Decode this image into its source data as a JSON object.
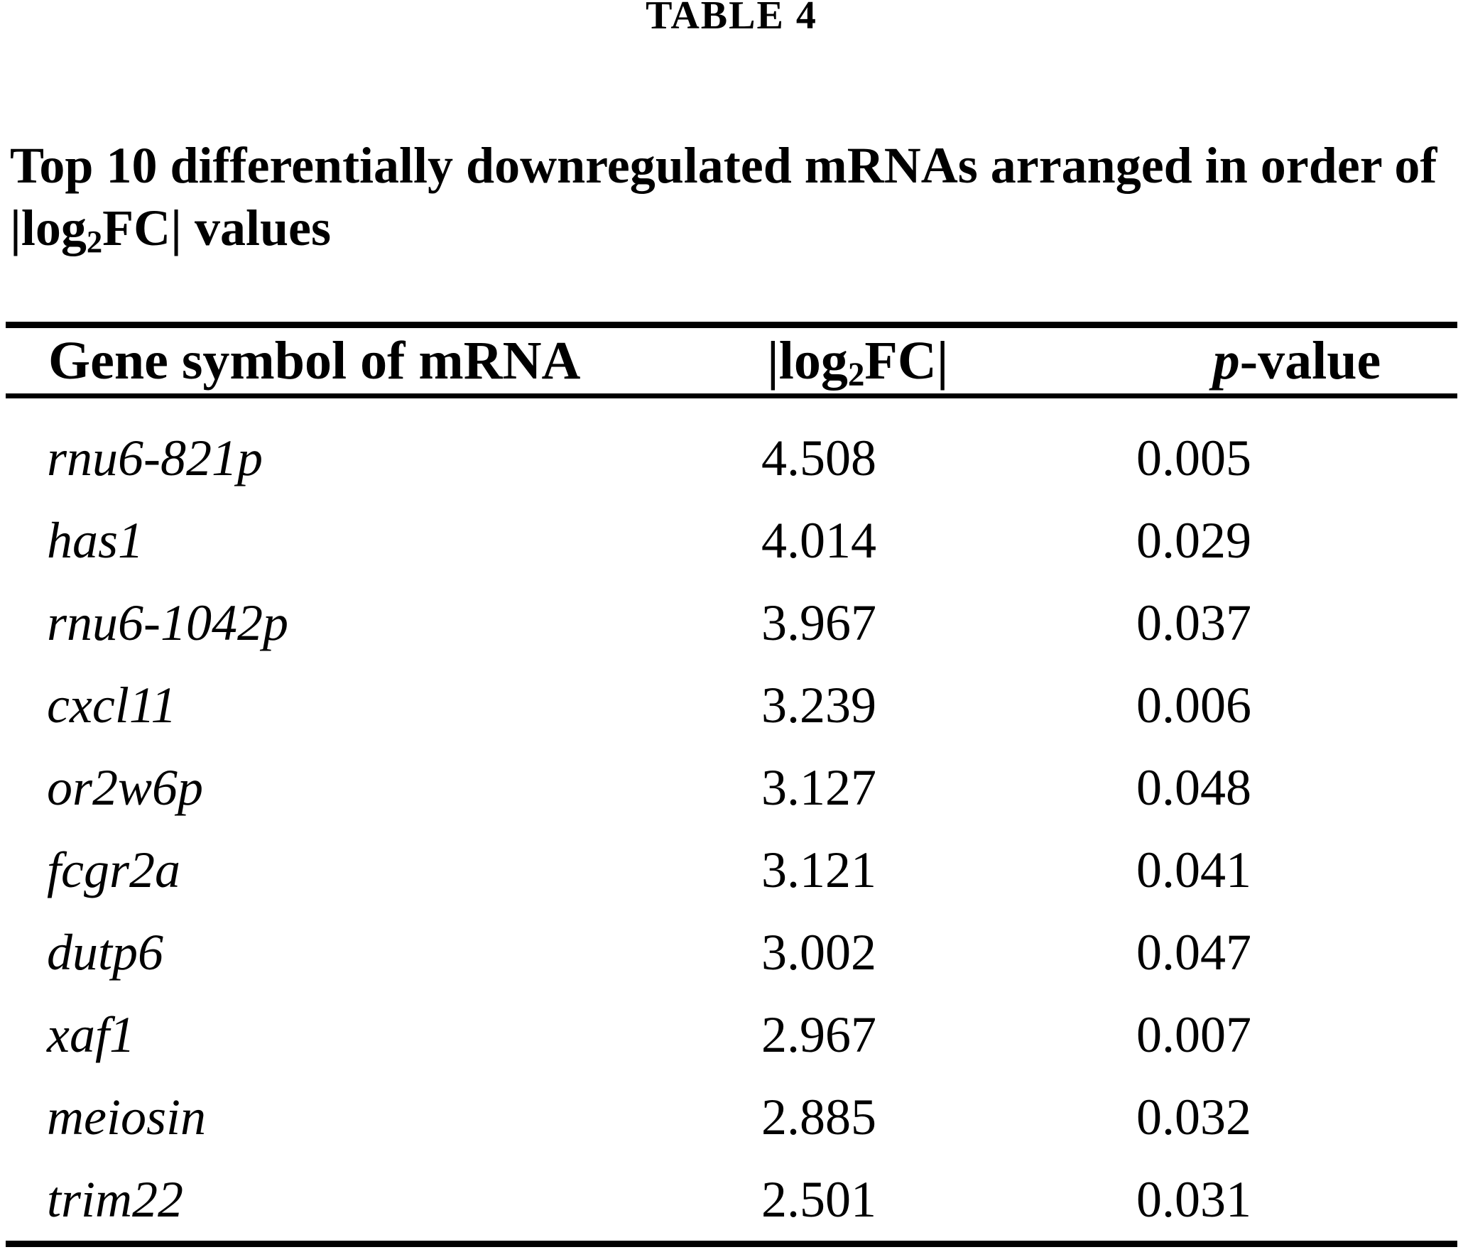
{
  "page_title": "TABLE 4",
  "caption": {
    "line1": "Top 10 differentially downregulated mRNAs arranged in order of",
    "line2": {
      "pre": "|log",
      "sub": "2",
      "post": "FC| values"
    }
  },
  "table": {
    "header": {
      "gene": "Gene symbol of mRNA",
      "log_fc": {
        "pre": "|log",
        "sub": "2",
        "post": "FC|"
      },
      "p_value": {
        "italic": "p",
        "rest": "-value"
      }
    },
    "rows": [
      {
        "gene": "rnu6-821p",
        "log_fc": "4.508",
        "p_value": "0.005"
      },
      {
        "gene": "has1",
        "log_fc": "4.014",
        "p_value": "0.029"
      },
      {
        "gene": "rnu6-1042p",
        "log_fc": "3.967",
        "p_value": "0.037"
      },
      {
        "gene": "cxcl11",
        "log_fc": "3.239",
        "p_value": "0.006"
      },
      {
        "gene": "or2w6p",
        "log_fc": "3.127",
        "p_value": "0.048"
      },
      {
        "gene": "fcgr2a",
        "log_fc": "3.121",
        "p_value": "0.041"
      },
      {
        "gene": "dutp6",
        "log_fc": "3.002",
        "p_value": "0.047"
      },
      {
        "gene": "xaf1",
        "log_fc": "2.967",
        "p_value": "0.007"
      },
      {
        "gene": "meiosin",
        "log_fc": "2.885",
        "p_value": "0.032"
      },
      {
        "gene": "trim22",
        "log_fc": "2.501",
        "p_value": "0.031"
      }
    ]
  },
  "colors": {
    "text": "#000000",
    "background": "#ffffff",
    "rule": "#000000"
  }
}
